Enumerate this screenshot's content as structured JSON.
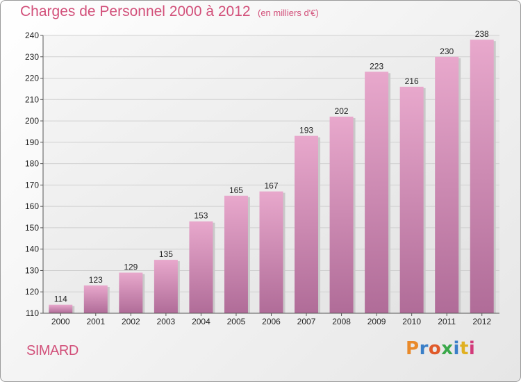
{
  "chart_data": {
    "type": "bar",
    "title": "Charges de Personnel 2000 à 2012",
    "subtitle": "(en milliers d'€)",
    "categories": [
      "2000",
      "2001",
      "2002",
      "2003",
      "2004",
      "2005",
      "2006",
      "2007",
      "2008",
      "2009",
      "2010",
      "2011",
      "2012"
    ],
    "values": [
      114,
      123,
      129,
      135,
      153,
      165,
      167,
      193,
      202,
      223,
      216,
      230,
      238
    ],
    "y_ticks": [
      110,
      120,
      130,
      140,
      150,
      160,
      170,
      180,
      190,
      200,
      210,
      220,
      230,
      240
    ],
    "ylim": [
      110,
      240
    ],
    "xlabel": "",
    "ylabel": "",
    "grid": true,
    "legend": "none"
  },
  "footer": {
    "commune": "SIMARD",
    "logo": {
      "text": "Proxiti",
      "letters": [
        {
          "ch": "P",
          "color": "#e98a2a"
        },
        {
          "ch": "r",
          "color": "#3a7fc8"
        },
        {
          "ch": "o",
          "color": "#e05a2a"
        },
        {
          "ch": "x",
          "color": "#3aa84a"
        },
        {
          "ch": "i",
          "color": "#3a7fc8"
        },
        {
          "ch": "t",
          "color": "#e0b020"
        },
        {
          "ch": "i",
          "color": "#d23a7a"
        }
      ]
    }
  },
  "colors": {
    "accent": "#d2507a",
    "bar_light": "#e8a8cc",
    "bar_dark": "#b06c98",
    "grid": "#cfcfcf"
  }
}
